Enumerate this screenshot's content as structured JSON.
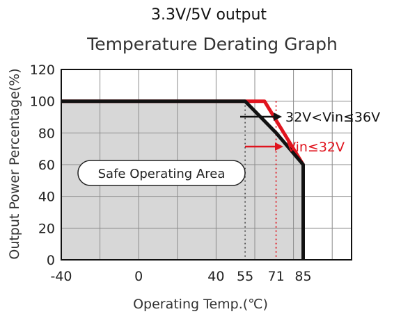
{
  "chart_data": {
    "type": "line",
    "supertitle": "3.3V/5V output",
    "title": "Temperature Derating Graph",
    "xlabel": "Operating Temp.(℃)",
    "ylabel": "Output Power Percentage(%)",
    "xlim": [
      -40,
      110
    ],
    "ylim": [
      0,
      120
    ],
    "x_ticks": [
      -40,
      0,
      40,
      55,
      71,
      85
    ],
    "x_tick_labels": [
      "-40",
      "0",
      "40",
      "55",
      "71",
      "85"
    ],
    "y_ticks": [
      0,
      20,
      40,
      60,
      80,
      100,
      120
    ],
    "y_tick_labels": [
      "0",
      "20",
      "40",
      "60",
      "80",
      "100",
      "120"
    ],
    "grid": true,
    "region_label": "Safe Operating Area",
    "series": [
      {
        "name": "32V<Vin≤36V",
        "color": "#111111",
        "points": [
          [
            -40,
            100
          ],
          [
            55,
            100
          ],
          [
            71,
            80
          ],
          [
            85,
            60
          ],
          [
            85,
            0
          ]
        ]
      },
      {
        "name": "Vin≤32V",
        "color": "#e0141e",
        "points": [
          [
            -40,
            100
          ],
          [
            65,
            100
          ],
          [
            85,
            60
          ]
        ]
      }
    ],
    "reference_lines": [
      {
        "x": 55,
        "color": "#555555",
        "style": "dotted"
      },
      {
        "x": 71,
        "color": "#e0141e",
        "style": "dotted"
      }
    ],
    "shade_color": "#d7d7d7",
    "grid_color": "#8c8c8c"
  }
}
